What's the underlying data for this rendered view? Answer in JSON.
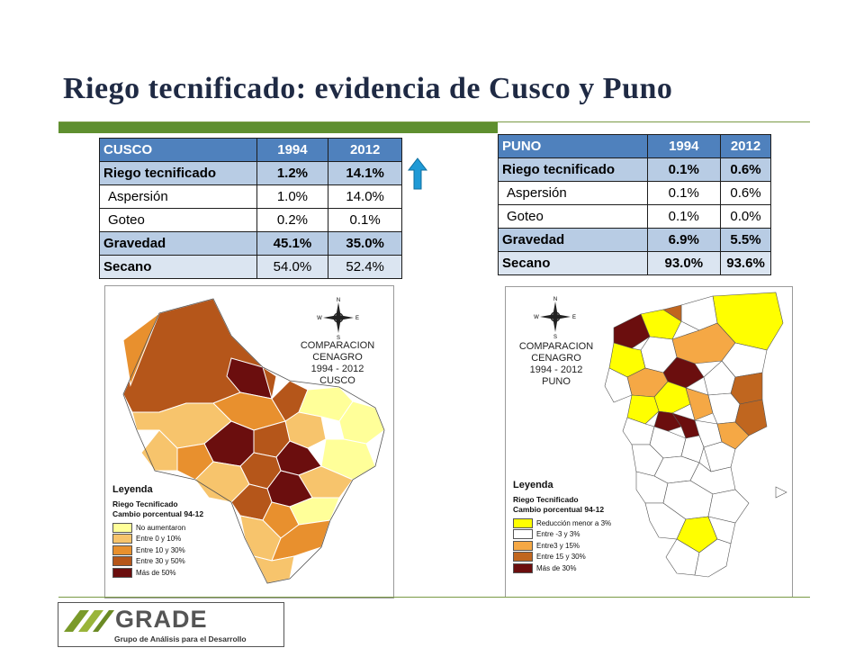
{
  "slide": {
    "title": "Riego tecnificado: evidencia de Cusco y Puno"
  },
  "tables": {
    "cusco": {
      "header": [
        "CUSCO",
        "1994",
        "2012"
      ],
      "rows": [
        {
          "label": "Riego tecnificado",
          "v1994": "1.2%",
          "v2012": "14.1%"
        },
        {
          "label": "Aspersión",
          "v1994": "1.0%",
          "v2012": "14.0%"
        },
        {
          "label": "Goteo",
          "v1994": "0.2%",
          "v2012": "0.1%"
        },
        {
          "label": "Gravedad",
          "v1994": "45.1%",
          "v2012": "35.0%"
        },
        {
          "label": "Secano",
          "v1994": "54.0%",
          "v2012": "52.4%"
        }
      ]
    },
    "puno": {
      "header": [
        "PUNO",
        "1994",
        "2012"
      ],
      "rows": [
        {
          "label": "Riego tecnificado",
          "v1994": "0.1%",
          "v2012": "0.6%"
        },
        {
          "label": "Aspersión",
          "v1994": "0.1%",
          "v2012": "0.6%"
        },
        {
          "label": "Goteo",
          "v1994": "0.1%",
          "v2012": "0.0%"
        },
        {
          "label": "Gravedad",
          "v1994": "6.9%",
          "v2012": "5.5%"
        },
        {
          "label": "Secano",
          "v1994": "93.0%",
          "v2012": "93.6%"
        }
      ]
    }
  },
  "indicator": {
    "icon": "up-arrow-icon",
    "color": "#1f9ad6"
  },
  "maps": {
    "compass_letters": {
      "n": "N",
      "s": "S",
      "e": "E",
      "w": "W"
    },
    "cusco": {
      "title_lines": [
        "COMPARACION",
        "CENAGRO",
        "1994 - 2012",
        "CUSCO"
      ],
      "legend_title": "Leyenda",
      "legend_sub1": "Riego Tecnificado",
      "legend_sub2": "Cambio porcentual 94-12",
      "legend_items": [
        {
          "label": "No aumentaron",
          "color": "#ffff99"
        },
        {
          "label": "Entre 0 y 10%",
          "color": "#f7c46c"
        },
        {
          "label": "Entre 10 y 30%",
          "color": "#e8902e"
        },
        {
          "label": "Entre 30 y 50%",
          "color": "#b5561a"
        },
        {
          "label": "Más de 50%",
          "color": "#6b0e0e"
        }
      ]
    },
    "puno": {
      "title_lines": [
        "COMPARACION",
        "CENAGRO",
        "1994 - 2012",
        "PUNO"
      ],
      "legend_title": "Leyenda",
      "legend_sub1": "Riego Tecnificado",
      "legend_sub2": "Cambio porcentual 94-12",
      "legend_items": [
        {
          "label": "Reducción menor a 3%",
          "color": "#ffff00"
        },
        {
          "label": "Entre -3 y 3%",
          "color": "#ffffff"
        },
        {
          "label": "Entre3 y 15%",
          "color": "#f5a845"
        },
        {
          "label": "Entre 15 y 30%",
          "color": "#c0661f"
        },
        {
          "label": "Más de 30%",
          "color": "#6b0e0e"
        }
      ]
    }
  },
  "logo": {
    "wordmark": "GRADE",
    "tagline": "Grupo de Análisis para el Desarrollo"
  }
}
